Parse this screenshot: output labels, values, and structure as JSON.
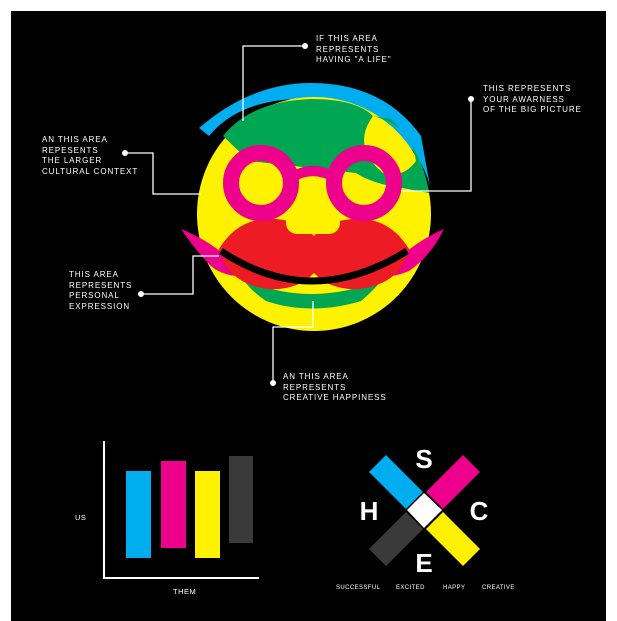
{
  "colors": {
    "background": "#000000",
    "cyan": "#00aeef",
    "magenta": "#ec008c",
    "yellow": "#fff200",
    "green": "#00a651",
    "red": "#ed1c24",
    "gray": "#3a3a3a",
    "white": "#ffffff"
  },
  "face_callouts": [
    {
      "id": "having-a-life",
      "text": "IF THIS AREA\nREPRESENTS\nHAVING \"A LIFE\""
    },
    {
      "id": "big-picture",
      "text": "THIS REPRESENTS\nYOUR AWARNESS\nOF THE BIG PICTURE"
    },
    {
      "id": "cultural-context",
      "text": "AN THIS AREA\nREPESENTS\nTHE LARGER\nCULTURAL CONTEXT"
    },
    {
      "id": "personal-expression",
      "text": "THIS AREA\nREPRESENTS\nPERSONAL\nEXPRESSION"
    },
    {
      "id": "creative-happiness",
      "text": "AN THIS AREA\nREPRESENTS\nCREATIVE HAPPINESS"
    }
  ],
  "chart_data": {
    "type": "bar",
    "xlabel": "THEM",
    "ylabel": "US",
    "bars": [
      {
        "color": "cyan"
      },
      {
        "color": "magenta"
      },
      {
        "color": "yellow"
      },
      {
        "color": "gray"
      }
    ]
  },
  "shce": {
    "letters": {
      "top": "S",
      "left": "H",
      "right": "C",
      "bottom": "E"
    },
    "labels": [
      "SUCCESSFUL",
      "EXCITED",
      "HAPPY",
      "CREATIVE"
    ]
  }
}
